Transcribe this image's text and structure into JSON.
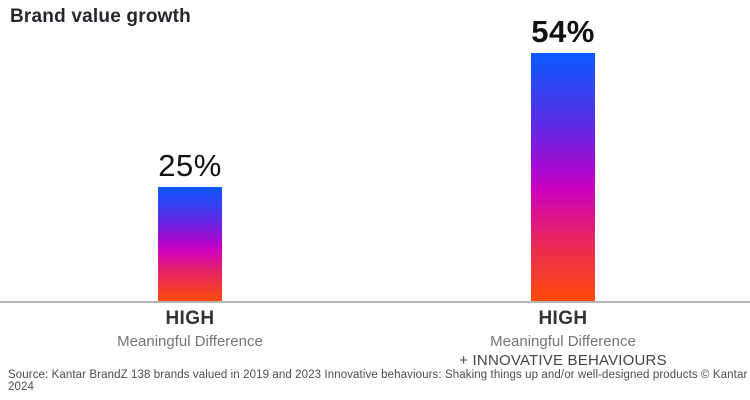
{
  "chart_data": {
    "type": "bar",
    "title": "Brand value growth",
    "categories": [
      "HIGH Meaningful Difference",
      "HIGH Meaningful Difference + INNOVATIVE BEHAVIOURS"
    ],
    "values": [
      25,
      54
    ],
    "ylim": [
      0,
      54
    ],
    "grid": false,
    "legend": false,
    "bar_gradient_stops": [
      "#0b5bff 0%",
      "#5b2ce6 28%",
      "#a50ad2 46%",
      "#cd00bd 55%",
      "#e7265f 75%",
      "#ff4d0a 100%"
    ],
    "baseline_color": "#b5b5b5",
    "bars": [
      {
        "value_label": "25%",
        "category_line1": "HIGH",
        "category_line2": "Meaningful Difference",
        "category_line3": ""
      },
      {
        "value_label": "54%",
        "category_line1": "HIGH",
        "category_line2": "Meaningful Difference",
        "category_line3": "+ INNOVATIVE BEHAVIOURS"
      }
    ]
  },
  "source_note": "Source: Kantar BrandZ 138 brands valued in 2019 and 2023 Innovative behaviours: Shaking things up and/or well-designed products © Kantar 2024"
}
